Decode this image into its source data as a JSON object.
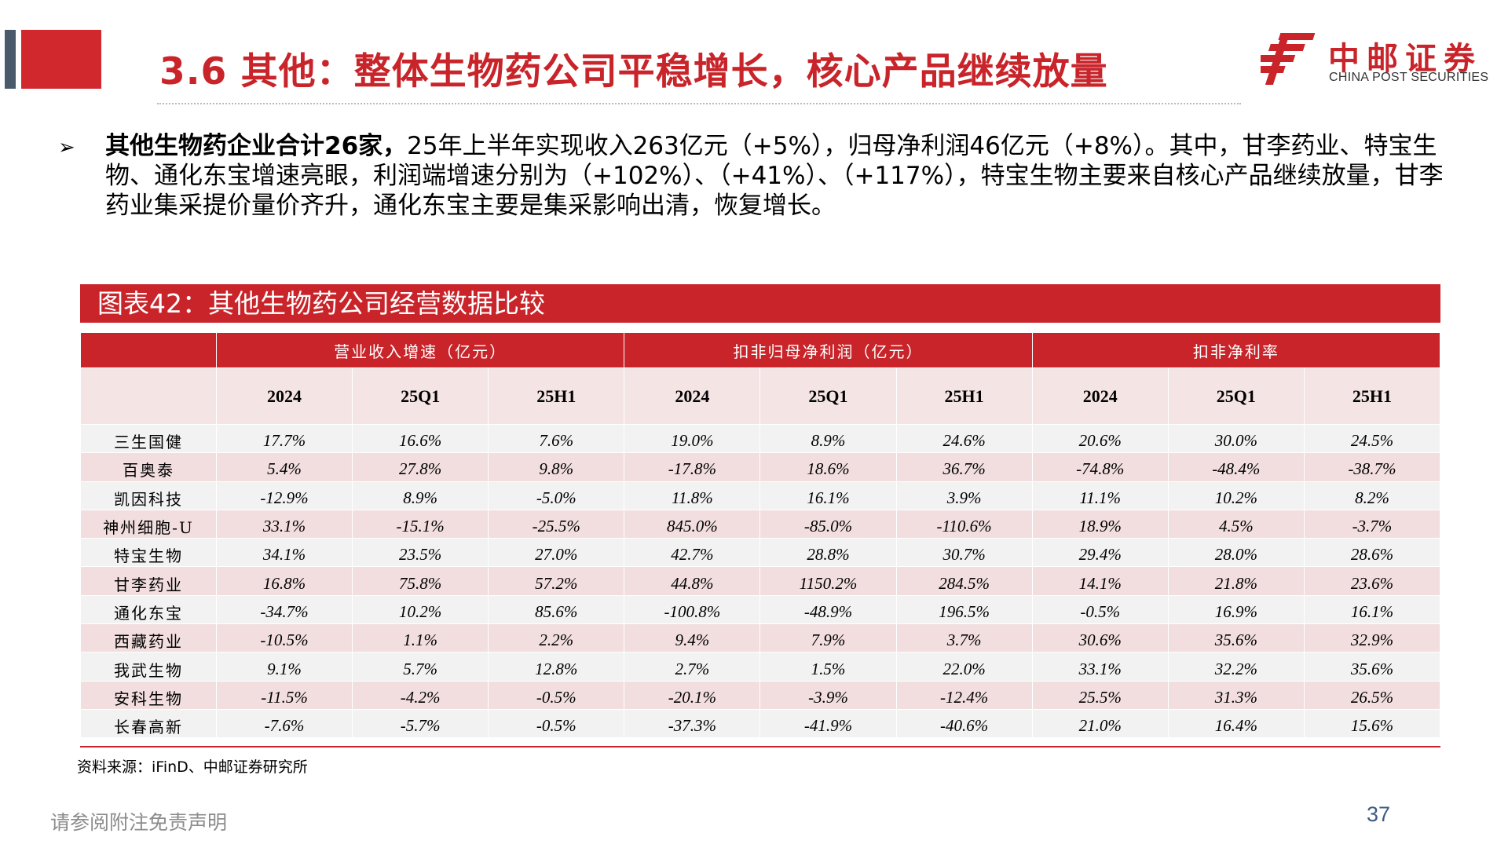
{
  "header": {
    "title": "3.6 其他：整体生物药公司平稳增长，核心产品继续放量",
    "logo_cn": "中邮证券",
    "logo_en": "CHINA POST SECURITIES",
    "logo_icon": "china-post-logo-icon",
    "accent_color": "#c8242a"
  },
  "bullet": {
    "marker": "➢",
    "bold": "其他生物药企业合计26家，",
    "text": "25年上半年实现收入263亿元（+5%），归母净利润46亿元（+8%）。其中，甘李药业、特宝生物、通化东宝增速亮眼，利润端增速分别为（+102%）、（+41%）、（+117%），特宝生物主要来自核心产品继续放量，甘李药业集采提价量价齐升，通化东宝主要是集采影响出清，恢复增长。"
  },
  "caption": "图表42：其他生物药公司经营数据比较",
  "table": {
    "groups": [
      "营业收入增速（亿元）",
      "扣非归母净利润（亿元）",
      "扣非净利率"
    ],
    "periods": [
      "2024",
      "25Q1",
      "25H1"
    ],
    "rows": [
      {
        "name": "三生国健",
        "values": [
          "17.7%",
          "16.6%",
          "7.6%",
          "19.0%",
          "8.9%",
          "24.6%",
          "20.6%",
          "30.0%",
          "24.5%"
        ]
      },
      {
        "name": "百奥泰",
        "values": [
          "5.4%",
          "27.8%",
          "9.8%",
          "-17.8%",
          "18.6%",
          "36.7%",
          "-74.8%",
          "-48.4%",
          "-38.7%"
        ]
      },
      {
        "name": "凯因科技",
        "values": [
          "-12.9%",
          "8.9%",
          "-5.0%",
          "11.8%",
          "16.1%",
          "3.9%",
          "11.1%",
          "10.2%",
          "8.2%"
        ]
      },
      {
        "name": "神州细胞-U",
        "values": [
          "33.1%",
          "-15.1%",
          "-25.5%",
          "845.0%",
          "-85.0%",
          "-110.6%",
          "18.9%",
          "4.5%",
          "-3.7%"
        ]
      },
      {
        "name": "特宝生物",
        "values": [
          "34.1%",
          "23.5%",
          "27.0%",
          "42.7%",
          "28.8%",
          "30.7%",
          "29.4%",
          "28.0%",
          "28.6%"
        ]
      },
      {
        "name": "甘李药业",
        "values": [
          "16.8%",
          "75.8%",
          "57.2%",
          "44.8%",
          "1150.2%",
          "284.5%",
          "14.1%",
          "21.8%",
          "23.6%"
        ]
      },
      {
        "name": "通化东宝",
        "values": [
          "-34.7%",
          "10.2%",
          "85.6%",
          "-100.8%",
          "-48.9%",
          "196.5%",
          "-0.5%",
          "16.9%",
          "16.1%"
        ]
      },
      {
        "name": "西藏药业",
        "values": [
          "-10.5%",
          "1.1%",
          "2.2%",
          "9.4%",
          "7.9%",
          "3.7%",
          "30.6%",
          "35.6%",
          "32.9%"
        ]
      },
      {
        "name": "我武生物",
        "values": [
          "9.1%",
          "5.7%",
          "12.8%",
          "2.7%",
          "1.5%",
          "22.0%",
          "33.1%",
          "32.2%",
          "35.6%"
        ]
      },
      {
        "name": "安科生物",
        "values": [
          "-11.5%",
          "-4.2%",
          "-0.5%",
          "-20.1%",
          "-3.9%",
          "-12.4%",
          "25.5%",
          "31.3%",
          "26.5%"
        ]
      },
      {
        "name": "长春高新",
        "values": [
          "-7.6%",
          "-5.7%",
          "-0.5%",
          "-37.3%",
          "-41.9%",
          "-40.6%",
          "21.0%",
          "16.4%",
          "15.6%"
        ]
      }
    ]
  },
  "source": "资料来源：iFinD、中邮证券研究所",
  "footer": {
    "disclaimer": "请参阅附注免责声明",
    "page_number": "37"
  }
}
